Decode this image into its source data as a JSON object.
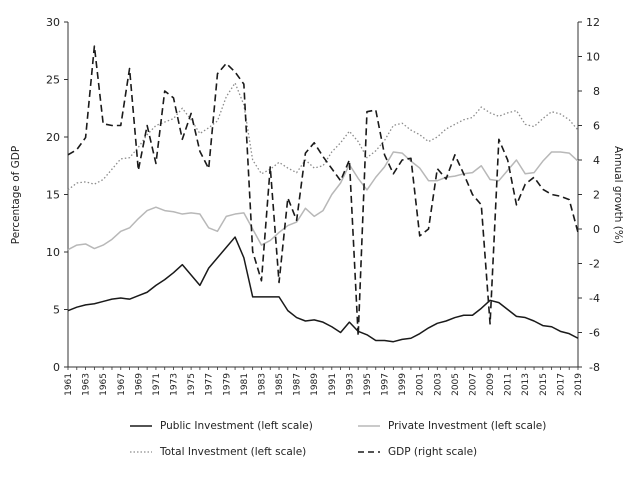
{
  "chart_data": {
    "type": "line",
    "title": "",
    "ylabel_left": "Percentage of GDP",
    "ylabel_right": "Annual growth (%)",
    "ylim_left": [
      0,
      30
    ],
    "ylim_right": [
      -8,
      12
    ],
    "yticks_left": [
      "0",
      "5",
      "10",
      "15",
      "20",
      "25",
      "30"
    ],
    "yticks_right": [
      "-8",
      "-6",
      "-4",
      "-2",
      "0",
      "2",
      "4",
      "6",
      "8",
      "10",
      "12"
    ],
    "x": [
      1961,
      1962,
      1963,
      1964,
      1965,
      1966,
      1967,
      1968,
      1969,
      1970,
      1971,
      1972,
      1973,
      1974,
      1975,
      1976,
      1977,
      1978,
      1979,
      1980,
      1981,
      1982,
      1983,
      1984,
      1985,
      1986,
      1987,
      1988,
      1989,
      1990,
      1991,
      1992,
      1993,
      1994,
      1995,
      1996,
      1997,
      1998,
      1999,
      2000,
      2001,
      2002,
      2003,
      2004,
      2005,
      2006,
      2007,
      2008,
      2009,
      2010,
      2011,
      2012,
      2013,
      2014,
      2015,
      2016,
      2017,
      2018,
      2019
    ],
    "xtick_labels": [
      "1961",
      "1963",
      "1965",
      "1967",
      "1969",
      "1971",
      "1973",
      "1975",
      "1977",
      "1979",
      "1981",
      "1983",
      "1985",
      "1987",
      "1989",
      "1991",
      "1993",
      "1995",
      "1997",
      "1999",
      "2001",
      "2003",
      "2005",
      "2007",
      "2009",
      "2011",
      "2013",
      "2015",
      "2017",
      "2019"
    ],
    "series": [
      {
        "name": "Public Investment (left scale)",
        "axis": "left",
        "style": "solid",
        "color": "#1a1a1a",
        "values": [
          4.9,
          5.2,
          5.4,
          5.5,
          5.7,
          5.9,
          6.0,
          5.9,
          6.2,
          6.5,
          7.1,
          7.6,
          8.2,
          8.9,
          8.0,
          7.1,
          8.6,
          9.5,
          10.4,
          11.3,
          9.5,
          6.1,
          6.1,
          6.1,
          6.1,
          4.9,
          4.3,
          4.0,
          4.1,
          3.9,
          3.5,
          3.0,
          3.9,
          3.1,
          2.8,
          2.3,
          2.3,
          2.2,
          2.4,
          2.5,
          2.9,
          3.4,
          3.8,
          4.0,
          4.3,
          4.5,
          4.5,
          5.1,
          5.8,
          5.6,
          5.0,
          4.4,
          4.3,
          4.0,
          3.6,
          3.5,
          3.1,
          2.9,
          2.5
        ]
      },
      {
        "name": "Private Investment (left scale)",
        "axis": "left",
        "style": "solid",
        "color": "#b8b8b8",
        "values": [
          10.2,
          10.6,
          10.7,
          10.3,
          10.6,
          11.1,
          11.8,
          12.1,
          12.9,
          13.6,
          13.9,
          13.6,
          13.5,
          13.3,
          13.4,
          13.3,
          12.1,
          11.8,
          13.1,
          13.3,
          13.4,
          12.0,
          10.6,
          11.0,
          11.7,
          12.3,
          12.6,
          13.8,
          13.1,
          13.6,
          15.0,
          16.0,
          17.6,
          16.4,
          15.4,
          16.5,
          17.4,
          18.7,
          18.6,
          17.9,
          17.3,
          16.2,
          16.2,
          16.5,
          16.6,
          16.8,
          16.9,
          17.5,
          16.3,
          16.2,
          17.1,
          18.0,
          16.8,
          16.9,
          17.9,
          18.7,
          18.7,
          18.6,
          17.9
        ]
      },
      {
        "name": "Total Investment (left scale)",
        "axis": "left",
        "style": "dotted",
        "color": "#8c8c8c",
        "values": [
          15.4,
          16.0,
          16.1,
          15.9,
          16.3,
          17.2,
          18.1,
          18.2,
          19.1,
          20.2,
          21.0,
          21.3,
          21.6,
          22.5,
          21.5,
          20.3,
          20.8,
          21.4,
          23.5,
          24.7,
          22.8,
          18.0,
          16.8,
          17.2,
          17.8,
          17.3,
          16.9,
          18.0,
          17.3,
          17.5,
          18.7,
          19.5,
          20.5,
          19.6,
          18.2,
          18.8,
          19.7,
          21.0,
          21.2,
          20.6,
          20.2,
          19.6,
          20.0,
          20.7,
          21.1,
          21.5,
          21.7,
          22.6,
          22.1,
          21.8,
          22.1,
          22.3,
          21.1,
          20.9,
          21.6,
          22.2,
          22.0,
          21.5,
          20.6
        ]
      },
      {
        "name": "GDP (right scale)",
        "axis": "right",
        "style": "dashed",
        "color": "#1a1a1a",
        "values": [
          4.3,
          4.6,
          5.3,
          10.6,
          6.1,
          6.0,
          6.0,
          9.3,
          3.4,
          6.0,
          3.8,
          8.0,
          7.6,
          5.2,
          6.7,
          4.5,
          3.5,
          9.0,
          9.6,
          9.1,
          8.4,
          -1.3,
          -3.0,
          3.6,
          -3.1,
          1.8,
          0.5,
          4.4,
          5.0,
          4.2,
          3.5,
          2.8,
          4.0,
          -6.2,
          6.8,
          6.9,
          4.3,
          3.2,
          4.0,
          4.1,
          -0.4,
          0.0,
          3.5,
          2.9,
          4.3,
          3.2,
          2.0,
          1.4,
          -5.5,
          5.2,
          4.0,
          1.4,
          2.6,
          3.0,
          2.3,
          2.0,
          1.9,
          1.7,
          -0.2
        ]
      }
    ],
    "legend": [
      {
        "label": "Public Investment (left scale)",
        "style": "solid",
        "color": "#1a1a1a"
      },
      {
        "label": "Private Investment (left scale)",
        "style": "solid",
        "color": "#b8b8b8"
      },
      {
        "label": "Total Investment (left scale)",
        "style": "dotted",
        "color": "#8c8c8c"
      },
      {
        "label": "GDP (right scale)",
        "style": "dashed",
        "color": "#1a1a1a"
      }
    ],
    "legend_position": "bottom",
    "grid": false
  }
}
